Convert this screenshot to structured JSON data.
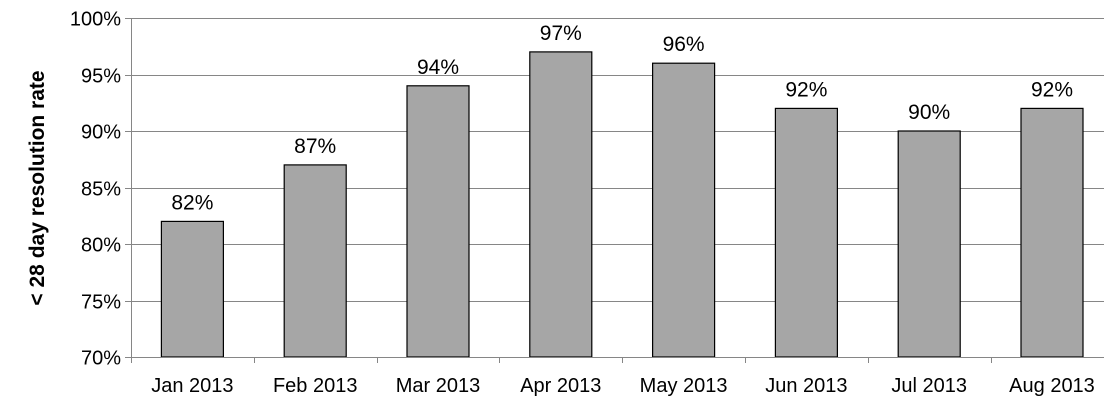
{
  "chart_data": {
    "type": "bar",
    "title": "",
    "xlabel": "",
    "ylabel": "< 28 day resolution rate",
    "categories": [
      "Jan 2013",
      "Feb 2013",
      "Mar 2013",
      "Apr 2013",
      "May 2013",
      "Jun 2013",
      "Jul 2013",
      "Aug 2013"
    ],
    "values": [
      82,
      87,
      94,
      97,
      96,
      92,
      90,
      92
    ],
    "data_labels": [
      "82%",
      "87%",
      "94%",
      "97%",
      "96%",
      "92%",
      "90%",
      "92%"
    ],
    "ylim": [
      70,
      100
    ],
    "yticks": [
      70,
      75,
      80,
      85,
      90,
      95,
      100
    ],
    "ytick_labels": [
      "70%",
      "75%",
      "80%",
      "85%",
      "90%",
      "95%",
      "100%"
    ],
    "bar_color": "#a6a6a6",
    "bar_edge_color": "#000000",
    "grid": true,
    "grid_color": "#868686",
    "legend": "none"
  }
}
